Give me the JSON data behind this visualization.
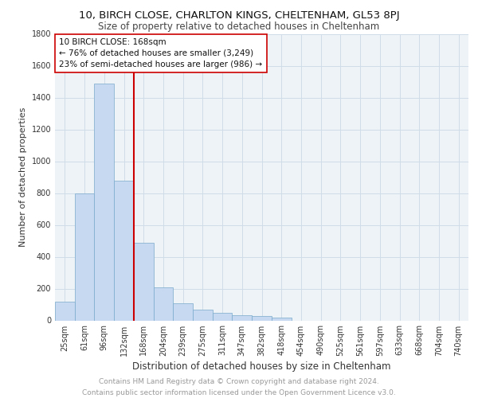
{
  "title1": "10, BIRCH CLOSE, CHARLTON KINGS, CHELTENHAM, GL53 8PJ",
  "title2": "Size of property relative to detached houses in Cheltenham",
  "xlabel": "Distribution of detached houses by size in Cheltenham",
  "ylabel": "Number of detached properties",
  "categories": [
    "25sqm",
    "61sqm",
    "96sqm",
    "132sqm",
    "168sqm",
    "204sqm",
    "239sqm",
    "275sqm",
    "311sqm",
    "347sqm",
    "382sqm",
    "418sqm",
    "454sqm",
    "490sqm",
    "525sqm",
    "561sqm",
    "597sqm",
    "633sqm",
    "668sqm",
    "704sqm",
    "740sqm"
  ],
  "values": [
    120,
    800,
    1490,
    880,
    490,
    210,
    110,
    70,
    50,
    35,
    30,
    20,
    0,
    0,
    0,
    0,
    0,
    0,
    0,
    0,
    0
  ],
  "bar_color": "#c6d9f0",
  "bar_edge_color": "#7aaacc",
  "vline_x_index": 4,
  "vline_color": "#cc0000",
  "annotation_line1": "10 BIRCH CLOSE: 168sqm",
  "annotation_line2": "← 76% of detached houses are smaller (3,249)",
  "annotation_line3": "23% of semi-detached houses are larger (986) →",
  "annotation_box_color": "#ffffff",
  "annotation_box_edge_color": "#cc0000",
  "ylim": [
    0,
    1800
  ],
  "yticks": [
    0,
    200,
    400,
    600,
    800,
    1000,
    1200,
    1400,
    1600,
    1800
  ],
  "footer_text": "Contains HM Land Registry data © Crown copyright and database right 2024.\nContains public sector information licensed under the Open Government Licence v3.0.",
  "grid_color": "#d0dce8",
  "bg_color": "#eef3f8",
  "title1_fontsize": 9.5,
  "title2_fontsize": 8.5,
  "xlabel_fontsize": 8.5,
  "ylabel_fontsize": 8,
  "tick_fontsize": 7,
  "annotation_fontsize": 7.5,
  "footer_fontsize": 6.5
}
